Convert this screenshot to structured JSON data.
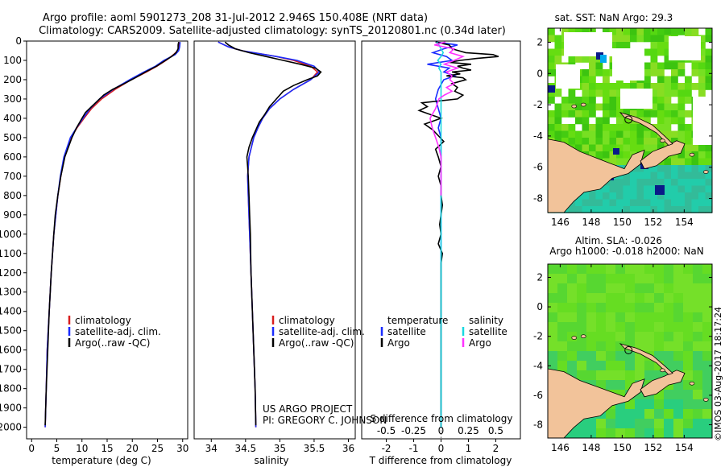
{
  "header": {
    "line1": "Argo profile: aoml 5901273_208 31-Jul-2012 2.946S 150.408E (NRT data)",
    "line2": "Climatology: CARS2009. Satellite-adjusted climatology: synTS_20120801.nc (0.34d later)"
  },
  "colors": {
    "climatology": "#d81e1e",
    "satellite": "#1a2cff",
    "argo": "#000000",
    "sal_satellite": "#19d8e0",
    "sal_argo": "#ff33ff",
    "land": "#f2c39a",
    "sea_green": "#55dd11",
    "sea_teal": "#22ccaa",
    "sea_navy": "#0a1a88"
  },
  "depth_axis": {
    "ticks": [
      0,
      100,
      200,
      300,
      400,
      500,
      600,
      700,
      800,
      900,
      1000,
      1100,
      1200,
      1300,
      1400,
      1500,
      1600,
      1700,
      1800,
      1900,
      2000
    ],
    "range": [
      0,
      2060
    ]
  },
  "chart_data": [
    {
      "type": "line",
      "panel": "temperature",
      "xlabel": "temperature (deg C)",
      "ylabel": "",
      "xlim": [
        -1,
        31
      ],
      "ylim": [
        2060,
        0
      ],
      "xticks": [
        0,
        5,
        10,
        15,
        20,
        25,
        30
      ],
      "legend": [
        "climatology",
        "satellite-adj. clim.",
        "Argo(..raw -QC)"
      ],
      "series": [
        {
          "name": "climatology",
          "depth": [
            5,
            30,
            50,
            70,
            100,
            130,
            160,
            200,
            250,
            300,
            350,
            400,
            450,
            500,
            600,
            700,
            800,
            1000,
            1200,
            1400,
            1600,
            1800,
            2000
          ],
          "values": [
            29.3,
            29.2,
            29.0,
            28.2,
            26.7,
            24.9,
            22.8,
            19.8,
            16.6,
            13.9,
            11.9,
            10.4,
            9.0,
            7.8,
            6.5,
            5.8,
            5.2,
            4.4,
            3.9,
            3.5,
            3.1,
            2.9,
            2.7
          ]
        },
        {
          "name": "satellite-adj. clim.",
          "depth": [
            5,
            30,
            50,
            70,
            100,
            130,
            160,
            200,
            250,
            300,
            350,
            400,
            450,
            500,
            600,
            700,
            800,
            1000,
            1200,
            1400,
            1600,
            1800,
            2000
          ],
          "values": [
            29.5,
            29.4,
            29.2,
            28.5,
            26.3,
            24.6,
            22.3,
            19.5,
            16.2,
            13.5,
            11.6,
            10.2,
            8.9,
            7.7,
            6.4,
            5.7,
            5.2,
            4.4,
            3.9,
            3.5,
            3.1,
            2.9,
            2.7
          ]
        },
        {
          "name": "Argo(..raw -QC)",
          "depth": [
            5,
            20,
            40,
            60,
            80,
            100,
            130,
            160,
            190,
            220,
            250,
            280,
            310,
            340,
            370,
            400,
            450,
            500,
            550,
            600,
            700,
            800,
            900,
            1000,
            1200,
            1400,
            1600,
            1800,
            1990
          ],
          "values": [
            29.2,
            29.1,
            29.1,
            28.7,
            27.8,
            26.6,
            24.8,
            22.6,
            20.6,
            18.4,
            16.1,
            14.3,
            13.1,
            11.9,
            10.7,
            10.0,
            8.9,
            8.0,
            7.3,
            6.6,
            5.8,
            5.2,
            4.7,
            4.4,
            3.9,
            3.5,
            3.2,
            2.9,
            2.7
          ]
        }
      ]
    },
    {
      "type": "line",
      "panel": "salinity",
      "xlabel": "salinity",
      "ylabel": "",
      "xlim": [
        33.75,
        36.1
      ],
      "ylim": [
        2060,
        0
      ],
      "xticks": [
        34,
        34.5,
        35,
        35.5,
        36
      ],
      "legend": [
        "climatology",
        "satellite-adj. clim.",
        "Argo(..raw -QC)"
      ],
      "series": [
        {
          "name": "climatology",
          "depth": [
            5,
            30,
            50,
            80,
            100,
            130,
            160,
            200,
            250,
            300,
            350,
            400,
            450,
            500,
            600,
            700,
            800,
            1000,
            1200,
            1400,
            1600,
            1800,
            2000
          ],
          "values": [
            34.1,
            34.25,
            34.45,
            34.95,
            35.2,
            35.45,
            35.55,
            35.45,
            35.2,
            35.0,
            34.85,
            34.75,
            34.68,
            34.62,
            34.55,
            34.53,
            34.54,
            34.56,
            34.58,
            34.6,
            34.62,
            34.64,
            34.65
          ]
        },
        {
          "name": "satellite-adj. clim.",
          "depth": [
            5,
            30,
            50,
            80,
            100,
            130,
            160,
            200,
            250,
            300,
            350,
            400,
            450,
            500,
            600,
            700,
            800,
            1000,
            1200,
            1400,
            1600,
            1800,
            2000
          ],
          "values": [
            34.1,
            34.25,
            34.45,
            34.95,
            35.25,
            35.5,
            35.58,
            35.45,
            35.2,
            35.0,
            34.85,
            34.75,
            34.68,
            34.62,
            34.55,
            34.53,
            34.54,
            34.56,
            34.58,
            34.6,
            34.62,
            34.64,
            34.65
          ]
        },
        {
          "name": "Argo(..raw -QC)",
          "depth": [
            5,
            20,
            40,
            60,
            80,
            100,
            120,
            140,
            160,
            180,
            200,
            230,
            260,
            300,
            340,
            380,
            420,
            460,
            500,
            550,
            600,
            650,
            700,
            800,
            900,
            1000,
            1200,
            1400,
            1600,
            1800,
            1990
          ],
          "values": [
            34.2,
            34.25,
            34.35,
            34.55,
            34.8,
            35.05,
            35.3,
            35.52,
            35.6,
            35.55,
            35.4,
            35.2,
            35.05,
            34.95,
            34.85,
            34.78,
            34.7,
            34.65,
            34.6,
            34.55,
            34.52,
            34.53,
            34.54,
            34.55,
            34.56,
            34.57,
            34.58,
            34.6,
            34.62,
            34.64,
            34.65
          ]
        }
      ]
    },
    {
      "type": "line",
      "panel": "difference",
      "xlabel": "T difference from climatology",
      "xlabel_top": "S difference from climatology",
      "ylabel": "",
      "xlim": [
        -2.9,
        2.9
      ],
      "ylim": [
        2060,
        0
      ],
      "xticks": [
        -2,
        -1,
        0,
        1,
        2
      ],
      "xticks_top": [
        "-0.5",
        "-0.25",
        "0",
        "0.25",
        "0.5"
      ],
      "legend": [
        "temperature satellite",
        "temperature Argo",
        "salinity satellite",
        "salinity Argo"
      ],
      "series": [
        {
          "name": "temperature satellite",
          "depth": [
            5,
            20,
            40,
            60,
            80,
            100,
            120,
            140,
            160,
            180,
            200,
            250,
            300,
            350,
            400,
            450,
            500,
            550,
            600,
            700,
            800,
            1000,
            1200,
            1400,
            1600,
            1800,
            2000
          ],
          "values": [
            -0.2,
            0.6,
            0.1,
            -0.3,
            0.2,
            0.4,
            -0.5,
            0.3,
            0.1,
            0.5,
            0.1,
            -0.1,
            -0.2,
            -0.1,
            0.0,
            -0.1,
            0.0,
            0.0,
            0.0,
            0.0,
            0.0,
            0.0,
            0.0,
            0.0,
            0.0,
            0.0,
            0.0
          ]
        },
        {
          "name": "temperature Argo",
          "depth": [
            5,
            20,
            40,
            60,
            70,
            80,
            90,
            100,
            110,
            120,
            130,
            140,
            150,
            160,
            170,
            180,
            190,
            200,
            220,
            240,
            260,
            280,
            300,
            320,
            340,
            360,
            380,
            400,
            430,
            460,
            490,
            520,
            560,
            600,
            650,
            700,
            750,
            800,
            850,
            900,
            950,
            1000,
            1050,
            1100,
            1150,
            1200,
            1300,
            1400,
            1500,
            1600,
            1700,
            1800,
            1900,
            2000
          ],
          "values": [
            -0.2,
            0.3,
            0.4,
            0.9,
            1.9,
            2.1,
            1.3,
            0.7,
            0.3,
            1.1,
            0.6,
            0.8,
            1.1,
            0.4,
            0.7,
            0.2,
            0.8,
            0.9,
            0.4,
            0.6,
            0.5,
            0.8,
            0.6,
            -0.7,
            -0.5,
            -0.8,
            -0.4,
            0.0,
            -0.6,
            -0.3,
            -0.1,
            0.1,
            -0.2,
            -0.1,
            0.0,
            -0.1,
            0.0,
            0.0,
            0.05,
            0.0,
            -0.05,
            0.0,
            -0.1,
            0.05,
            0.0,
            0.0,
            0.0,
            0.0,
            0.0,
            0.0,
            0.0,
            0.0,
            0.0,
            0.0
          ]
        },
        {
          "name": "salinity satellite",
          "depth": [
            5,
            20,
            40,
            60,
            80,
            100,
            120,
            140,
            160,
            180,
            200,
            250,
            300,
            400,
            500,
            600,
            800,
            1000,
            1200,
            1400,
            1600,
            1800,
            2000
          ],
          "values": [
            -0.04,
            -0.02,
            0.0,
            0.02,
            0.0,
            -0.03,
            0.0,
            -0.02,
            0.0,
            0.0,
            0.0,
            0.0,
            0.0,
            0.0,
            0.0,
            0.0,
            0.0,
            0.0,
            0.0,
            0.0,
            0.0,
            0.0,
            0.0
          ]
        },
        {
          "name": "salinity Argo",
          "depth": [
            5,
            20,
            40,
            60,
            80,
            100,
            120,
            140,
            160,
            180,
            200,
            220,
            240,
            260,
            280,
            300,
            350,
            400,
            450,
            500,
            550,
            600,
            700,
            800
          ],
          "values": [
            0.04,
            -0.06,
            0.12,
            0.08,
            0.2,
            0.12,
            0.03,
            0.15,
            0.05,
            0.1,
            0.08,
            0.12,
            0.05,
            0.1,
            0.03,
            -0.02,
            -0.05,
            -0.1,
            -0.08,
            -0.05,
            -0.02,
            0.0,
            0.0,
            0.0
          ]
        }
      ]
    }
  ],
  "temp_legend": {
    "clim": "climatology",
    "sat": "satellite-adj. clim.",
    "argo": "Argo(..raw -QC)"
  },
  "sal_legend": {
    "clim": "climatology",
    "sat": "satellite-adj. clim.",
    "argo": "Argo(..raw -QC)"
  },
  "diff_legend": {
    "temp_title": "temperature",
    "sal_title": "salinity",
    "sat": "satellite",
    "argo": "Argo"
  },
  "credits": {
    "line1": "US ARGO PROJECT",
    "line2": "PI: GREGORY C. JOHNSON"
  },
  "maps": {
    "top": {
      "title": "sat. SST: NaN Argo: 29.3",
      "xticks": [
        "146",
        "148",
        "150",
        "152",
        "154"
      ],
      "yticks": [
        "2",
        "0",
        "-2",
        "-4",
        "-6",
        "-8"
      ]
    },
    "bottom": {
      "title1": "Altim. SLA: -0.026",
      "title2": "Argo h1000: -0.018 h2000: NaN",
      "xticks": [
        "146",
        "148",
        "150",
        "152",
        "154"
      ],
      "yticks": [
        "2",
        "0",
        "-2",
        "-4",
        "-6",
        "-8"
      ]
    },
    "float_position": {
      "lon": 150.408,
      "lat": -2.946
    }
  },
  "footer_stamp": "©IMOS 03-Aug-2017 18:17:24"
}
